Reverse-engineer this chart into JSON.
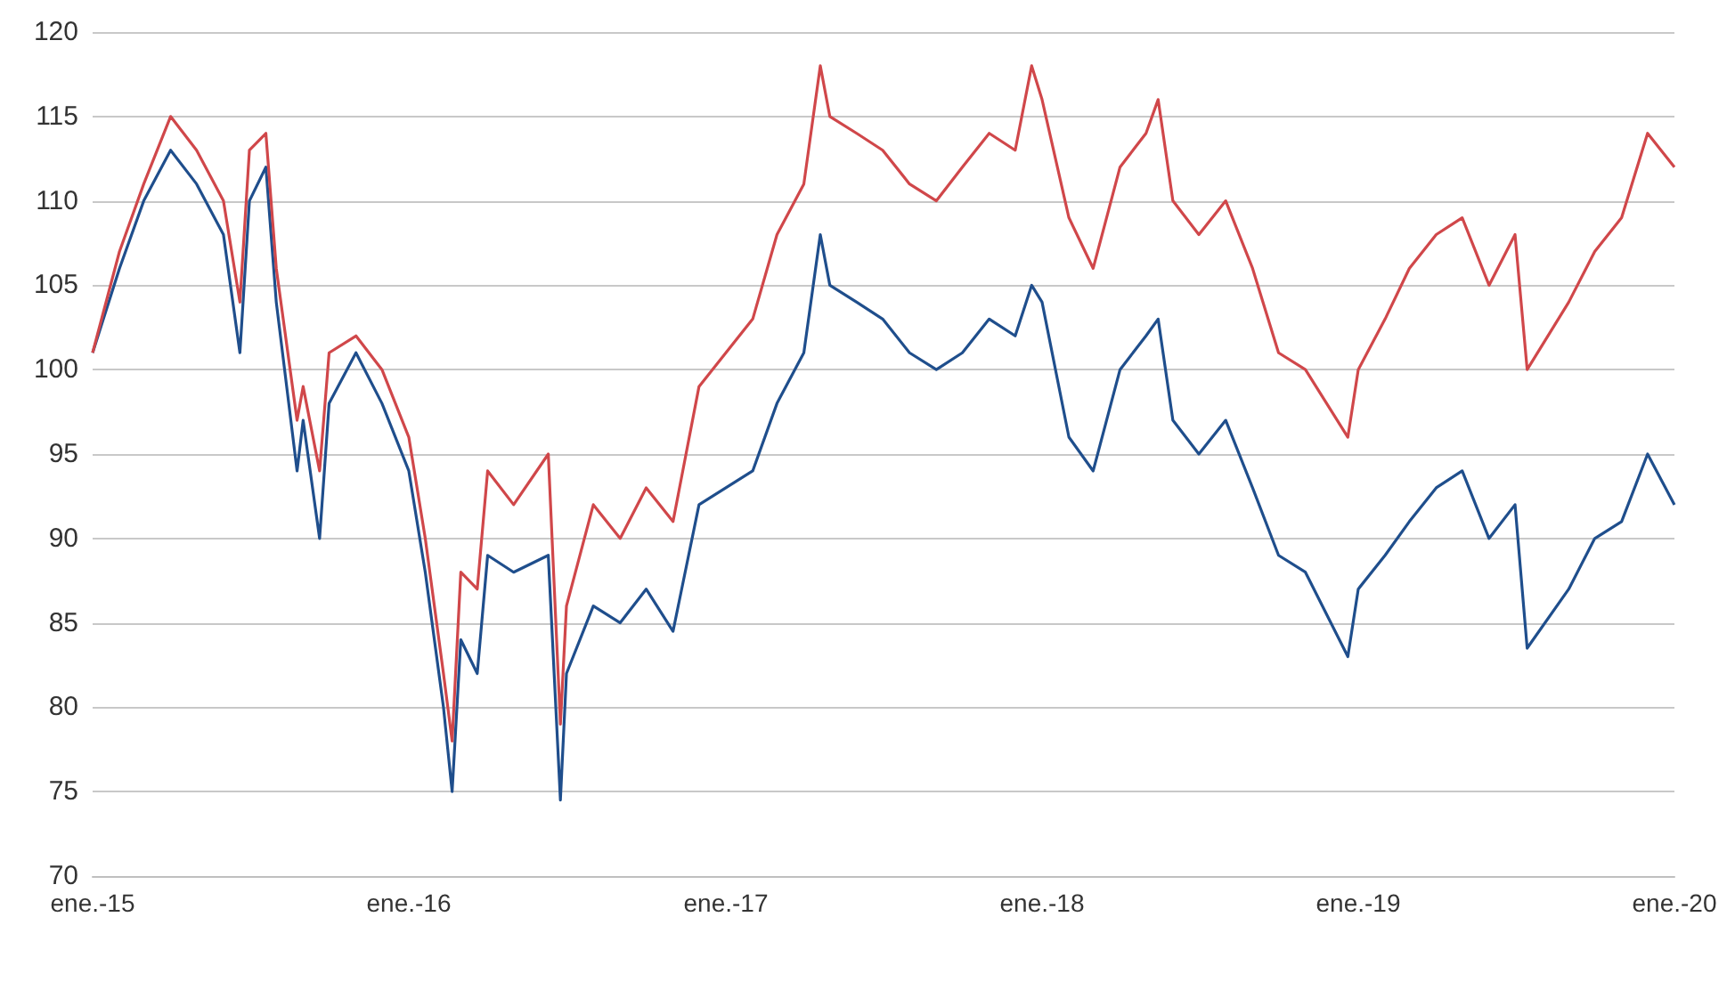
{
  "chart_data": {
    "type": "line",
    "x": [
      "2015-01-01",
      "2015-02-01",
      "2015-03-01",
      "2015-04-01",
      "2015-05-01",
      "2015-06-01",
      "2015-06-20",
      "2015-07-01",
      "2015-07-20",
      "2015-08-01",
      "2015-08-25",
      "2015-09-01",
      "2015-09-20",
      "2015-10-01",
      "2015-11-01",
      "2015-12-01",
      "2016-01-01",
      "2016-01-20",
      "2016-02-10",
      "2016-02-20",
      "2016-03-01",
      "2016-03-20",
      "2016-04-01",
      "2016-05-01",
      "2016-06-10",
      "2016-06-24",
      "2016-07-01",
      "2016-08-01",
      "2016-09-01",
      "2016-10-01",
      "2016-11-01",
      "2016-12-01",
      "2017-01-01",
      "2017-02-01",
      "2017-03-01",
      "2017-04-01",
      "2017-04-20",
      "2017-05-01",
      "2017-06-01",
      "2017-07-01",
      "2017-08-01",
      "2017-09-01",
      "2017-10-01",
      "2017-11-01",
      "2017-12-01",
      "2017-12-20",
      "2018-01-01",
      "2018-02-01",
      "2018-03-01",
      "2018-04-01",
      "2018-05-01",
      "2018-05-15",
      "2018-06-01",
      "2018-07-01",
      "2018-08-01",
      "2018-09-01",
      "2018-10-01",
      "2018-11-01",
      "2018-12-20",
      "2019-01-01",
      "2019-02-01",
      "2019-03-01",
      "2019-04-01",
      "2019-05-01",
      "2019-06-01",
      "2019-07-01",
      "2019-07-15",
      "2019-09-01",
      "2019-10-01",
      "2019-11-01",
      "2019-12-01",
      "2020-01-01"
    ],
    "series": [
      {
        "color": "#1f4e8c",
        "values": [
          101,
          106,
          110,
          113,
          111,
          108,
          101,
          110,
          112,
          104,
          94,
          97,
          90,
          98,
          101,
          98,
          94,
          88,
          80,
          75,
          84,
          82,
          89,
          88,
          89,
          74.5,
          82,
          86,
          85,
          87,
          84.5,
          92,
          93,
          94,
          98,
          101,
          108,
          105,
          104,
          103,
          101,
          100,
          101,
          103,
          102,
          105,
          104,
          96,
          94,
          100,
          102,
          103,
          97,
          95,
          97,
          93,
          89,
          88,
          83,
          87,
          89,
          91,
          93,
          94,
          90,
          92,
          83.5,
          87,
          90,
          91,
          95,
          92
        ]
      },
      {
        "color": "#d0474a",
        "values": [
          101,
          107,
          111,
          115,
          113,
          110,
          104,
          113,
          114,
          106,
          97,
          99,
          94,
          101,
          102,
          100,
          96,
          90,
          82,
          78,
          88,
          87,
          94,
          92,
          95,
          79,
          86,
          92,
          90,
          93,
          91,
          99,
          101,
          103,
          108,
          111,
          118,
          115,
          114,
          113,
          111,
          110,
          112,
          114,
          113,
          118,
          116,
          109,
          106,
          112,
          114,
          116,
          110,
          108,
          110,
          106,
          101,
          100,
          96,
          100,
          103,
          106,
          108,
          109,
          105,
          108,
          100,
          104,
          107,
          109,
          114,
          112
        ]
      }
    ],
    "xlim": [
      "2015-01-01",
      "2020-01-01"
    ],
    "xticks": [
      {
        "value": "2015-01-01",
        "label": "ene.-15"
      },
      {
        "value": "2016-01-01",
        "label": "ene.-16"
      },
      {
        "value": "2017-01-01",
        "label": "ene.-17"
      },
      {
        "value": "2018-01-01",
        "label": "ene.-18"
      },
      {
        "value": "2019-01-01",
        "label": "ene.-19"
      },
      {
        "value": "2020-01-01",
        "label": "ene.-20"
      }
    ],
    "ylim": [
      70,
      120
    ],
    "yticks": [
      70,
      75,
      80,
      85,
      90,
      95,
      100,
      105,
      110,
      115,
      120
    ],
    "grid": "y",
    "marker": "none",
    "line_style": "solid"
  }
}
